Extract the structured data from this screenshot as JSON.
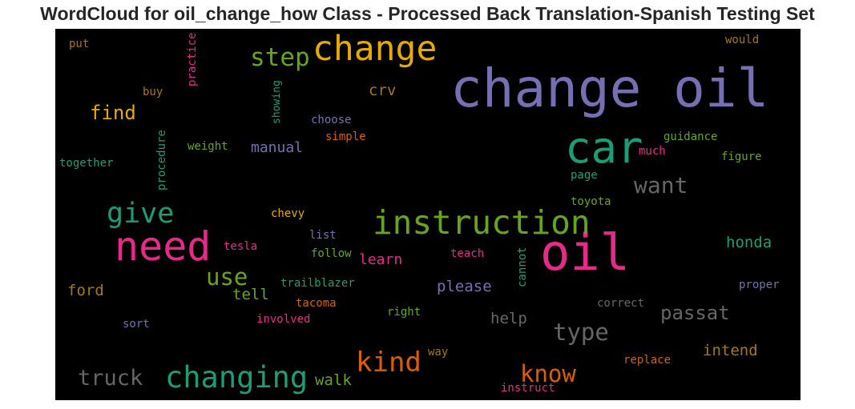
{
  "chart_data": {
    "type": "wordcloud",
    "title": "WordCloud for oil_change_how Class - Processed Back Translation-Spanish Testing Set",
    "background": "#000000",
    "palette": [
      "#7570b3",
      "#1b9e77",
      "#d95f02",
      "#e7298a",
      "#66a61e",
      "#e6ab02",
      "#a6761d",
      "#666666"
    ],
    "words": [
      {
        "text": "change oil",
        "color": "#7570b3"
      },
      {
        "text": "oil",
        "color": "#e7298a"
      },
      {
        "text": "car",
        "color": "#1b9e77"
      },
      {
        "text": "need",
        "color": "#e7298a"
      },
      {
        "text": "instruction",
        "color": "#66a61e"
      },
      {
        "text": "change",
        "color": "#e6ab02"
      },
      {
        "text": "changing",
        "color": "#1b9e77"
      },
      {
        "text": "give",
        "color": "#1b9e77"
      },
      {
        "text": "kind",
        "color": "#d95f02"
      },
      {
        "text": "step",
        "color": "#66a61e"
      },
      {
        "text": "know",
        "color": "#d95f02"
      },
      {
        "text": "type",
        "color": "#666666"
      },
      {
        "text": "truck",
        "color": "#666666"
      },
      {
        "text": "want",
        "color": "#666666"
      },
      {
        "text": "use",
        "color": "#66a61e"
      },
      {
        "text": "passat",
        "color": "#666666"
      },
      {
        "text": "find",
        "color": "#e6ab02"
      },
      {
        "text": "honda",
        "color": "#1b9e77"
      },
      {
        "text": "intend",
        "color": "#a6761d"
      },
      {
        "text": "manual",
        "color": "#7570b3"
      },
      {
        "text": "ford",
        "color": "#a6761d"
      },
      {
        "text": "tell",
        "color": "#66a61e"
      },
      {
        "text": "learn",
        "color": "#e7298a"
      },
      {
        "text": "please",
        "color": "#7570b3"
      },
      {
        "text": "help",
        "color": "#666666"
      },
      {
        "text": "walk",
        "color": "#66a61e"
      },
      {
        "text": "crv",
        "color": "#a6761d"
      },
      {
        "text": "practice",
        "color": "#e7298a"
      },
      {
        "text": "showing",
        "color": "#1b9e77"
      },
      {
        "text": "procedure",
        "color": "#1b9e77"
      },
      {
        "text": "cannot",
        "color": "#1b9e77"
      },
      {
        "text": "guidance",
        "color": "#66a61e"
      },
      {
        "text": "figure",
        "color": "#66a61e"
      },
      {
        "text": "page",
        "color": "#1b9e77"
      },
      {
        "text": "toyota",
        "color": "#66a61e"
      },
      {
        "text": "much",
        "color": "#e7298a"
      },
      {
        "text": "would",
        "color": "#a6761d"
      },
      {
        "text": "put",
        "color": "#a6761d"
      },
      {
        "text": "buy",
        "color": "#a6761d"
      },
      {
        "text": "choose",
        "color": "#7570b3"
      },
      {
        "text": "simple",
        "color": "#d95f02"
      },
      {
        "text": "weight",
        "color": "#66a61e"
      },
      {
        "text": "together",
        "color": "#1b9e77"
      },
      {
        "text": "chevy",
        "color": "#e6ab02"
      },
      {
        "text": "list",
        "color": "#7570b3"
      },
      {
        "text": "tesla",
        "color": "#e7298a"
      },
      {
        "text": "follow",
        "color": "#66a61e"
      },
      {
        "text": "teach",
        "color": "#e7298a"
      },
      {
        "text": "trailblazer",
        "color": "#1b9e77"
      },
      {
        "text": "tacoma",
        "color": "#d95f02"
      },
      {
        "text": "right",
        "color": "#66a61e"
      },
      {
        "text": "involved",
        "color": "#e7298a"
      },
      {
        "text": "sort",
        "color": "#7570b3"
      },
      {
        "text": "correct",
        "color": "#666666"
      },
      {
        "text": "proper",
        "color": "#7570b3"
      },
      {
        "text": "way",
        "color": "#a6761d"
      },
      {
        "text": "replace",
        "color": "#d95f02"
      },
      {
        "text": "instruct",
        "color": "#e7298a"
      }
    ]
  }
}
